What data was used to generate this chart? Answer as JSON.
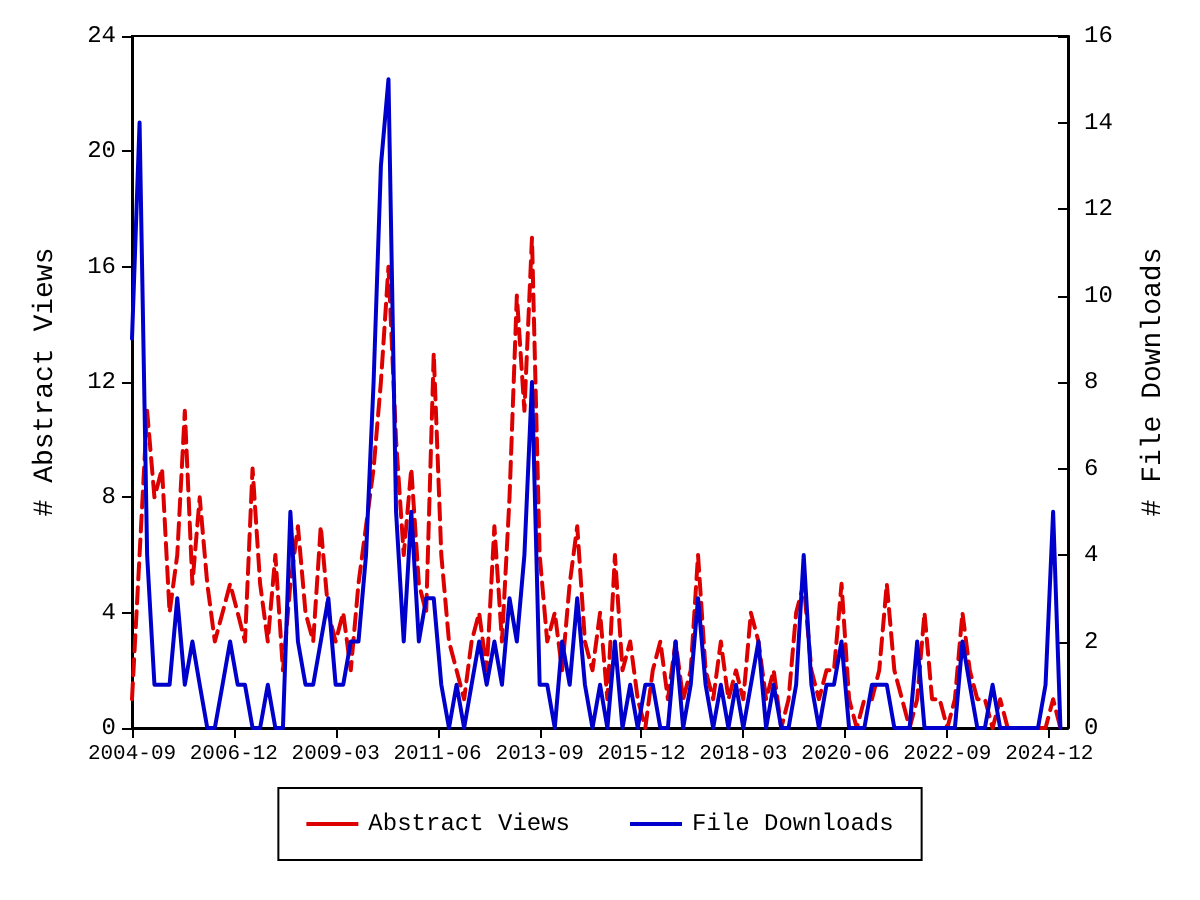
{
  "chart_data": {
    "type": "line",
    "xlabel": null,
    "ylabel": "# Abstract Views",
    "y2label": "# File Downloads",
    "x": [
      "2004-09",
      "2004-11",
      "2005-01",
      "2005-03",
      "2005-05",
      "2005-07",
      "2005-09",
      "2005-11",
      "2006-01",
      "2006-03",
      "2006-05",
      "2006-07",
      "2006-09",
      "2006-11",
      "2007-01",
      "2007-03",
      "2007-05",
      "2007-07",
      "2007-09",
      "2007-11",
      "2008-01",
      "2008-03",
      "2008-05",
      "2008-07",
      "2008-09",
      "2008-11",
      "2009-01",
      "2009-03",
      "2009-05",
      "2009-07",
      "2009-09",
      "2009-11",
      "2010-01",
      "2010-03",
      "2010-05",
      "2010-07",
      "2010-09",
      "2010-11",
      "2011-01",
      "2011-03",
      "2011-05",
      "2011-07",
      "2011-09",
      "2011-11",
      "2012-01",
      "2012-03",
      "2012-05",
      "2012-07",
      "2012-09",
      "2012-11",
      "2013-01",
      "2013-03",
      "2013-05",
      "2013-07",
      "2013-09",
      "2013-11",
      "2014-01",
      "2014-03",
      "2014-05",
      "2014-07",
      "2014-09",
      "2014-11",
      "2015-01",
      "2015-03",
      "2015-05",
      "2015-07",
      "2015-09",
      "2015-11",
      "2016-01",
      "2016-03",
      "2016-05",
      "2016-07",
      "2016-09",
      "2016-11",
      "2017-01",
      "2017-03",
      "2017-05",
      "2017-07",
      "2017-09",
      "2017-11",
      "2018-01",
      "2018-03",
      "2018-05",
      "2018-07",
      "2018-09",
      "2018-11",
      "2019-01",
      "2019-03",
      "2019-05",
      "2019-07",
      "2019-09",
      "2019-11",
      "2020-01",
      "2020-03",
      "2020-05",
      "2020-07",
      "2020-09",
      "2020-11",
      "2021-01",
      "2021-03",
      "2021-05",
      "2021-07",
      "2021-09",
      "2021-11",
      "2022-01",
      "2022-03",
      "2022-05",
      "2022-07",
      "2022-09",
      "2022-11",
      "2023-01",
      "2023-03",
      "2023-05",
      "2023-07",
      "2023-09",
      "2023-11",
      "2024-01",
      "2024-03",
      "2024-05",
      "2024-07",
      "2024-09",
      "2024-11",
      "2025-01",
      "2025-03"
    ],
    "series": [
      {
        "name": "Abstract Views",
        "color": "#dd0000",
        "line_style": "dashed",
        "values": [
          1,
          6,
          11,
          8,
          9,
          4,
          6,
          11,
          5,
          8,
          5,
          3,
          4,
          5,
          4,
          3,
          9,
          5,
          3,
          6,
          2,
          5,
          7,
          4,
          3,
          7,
          4,
          3,
          4,
          2,
          5,
          7,
          9,
          12,
          16,
          10,
          6,
          9,
          5,
          4,
          13,
          6,
          3,
          2,
          1,
          3,
          4,
          2,
          7,
          3,
          8,
          15,
          11,
          17,
          6,
          3,
          4,
          2,
          5,
          7,
          3,
          2,
          4,
          1,
          6,
          2,
          3,
          1,
          0,
          2,
          3,
          1,
          3,
          1,
          2,
          6,
          2,
          1,
          3,
          1,
          2,
          1,
          4,
          3,
          1,
          2,
          0,
          1,
          4,
          5,
          2,
          1,
          2,
          2,
          5,
          1,
          0,
          1,
          1,
          2,
          5,
          2,
          1,
          0,
          1,
          4,
          1,
          1,
          0,
          1,
          4,
          2,
          1,
          1,
          0,
          1,
          0,
          0,
          0,
          0,
          0,
          0,
          1,
          0
        ]
      },
      {
        "name": "File Downloads",
        "color": "#0000cc",
        "line_style": "solid",
        "axis": "y2",
        "values": [
          9,
          14,
          4,
          1,
          1,
          1,
          3,
          1,
          2,
          1,
          0,
          0,
          1,
          2,
          1,
          1,
          0,
          0,
          1,
          0,
          0,
          5,
          2,
          1,
          1,
          2,
          3,
          1,
          1,
          2,
          2,
          4,
          8,
          13,
          15,
          5,
          2,
          5,
          2,
          3,
          3,
          1,
          0,
          1,
          0,
          1,
          2,
          1,
          2,
          1,
          3,
          2,
          4,
          8,
          1,
          1,
          0,
          2,
          1,
          3,
          1,
          0,
          1,
          0,
          2,
          0,
          1,
          0,
          1,
          1,
          0,
          0,
          2,
          0,
          1,
          3,
          1,
          0,
          1,
          0,
          1,
          0,
          1,
          2,
          0,
          1,
          0,
          0,
          1,
          4,
          1,
          0,
          1,
          1,
          2,
          0,
          0,
          0,
          1,
          1,
          1,
          0,
          0,
          0,
          2,
          0,
          0,
          0,
          0,
          0,
          2,
          1,
          0,
          0,
          1,
          0,
          0,
          0,
          0,
          0,
          0,
          1,
          5,
          0
        ]
      }
    ],
    "xlim": [
      "2004-09",
      "2025-05"
    ],
    "xticks": [
      "2004-09",
      "2006-12",
      "2009-03",
      "2011-06",
      "2013-09",
      "2015-12",
      "2018-03",
      "2020-06",
      "2022-09",
      "2024-12"
    ],
    "ylim": [
      0,
      24
    ],
    "yticks": [
      0,
      4,
      8,
      12,
      16,
      20,
      24
    ],
    "y2lim": [
      0,
      16
    ],
    "y2ticks": [
      0,
      2,
      4,
      6,
      8,
      10,
      12,
      14,
      16
    ],
    "marker": "none",
    "grid": false,
    "legend": "bottom"
  }
}
